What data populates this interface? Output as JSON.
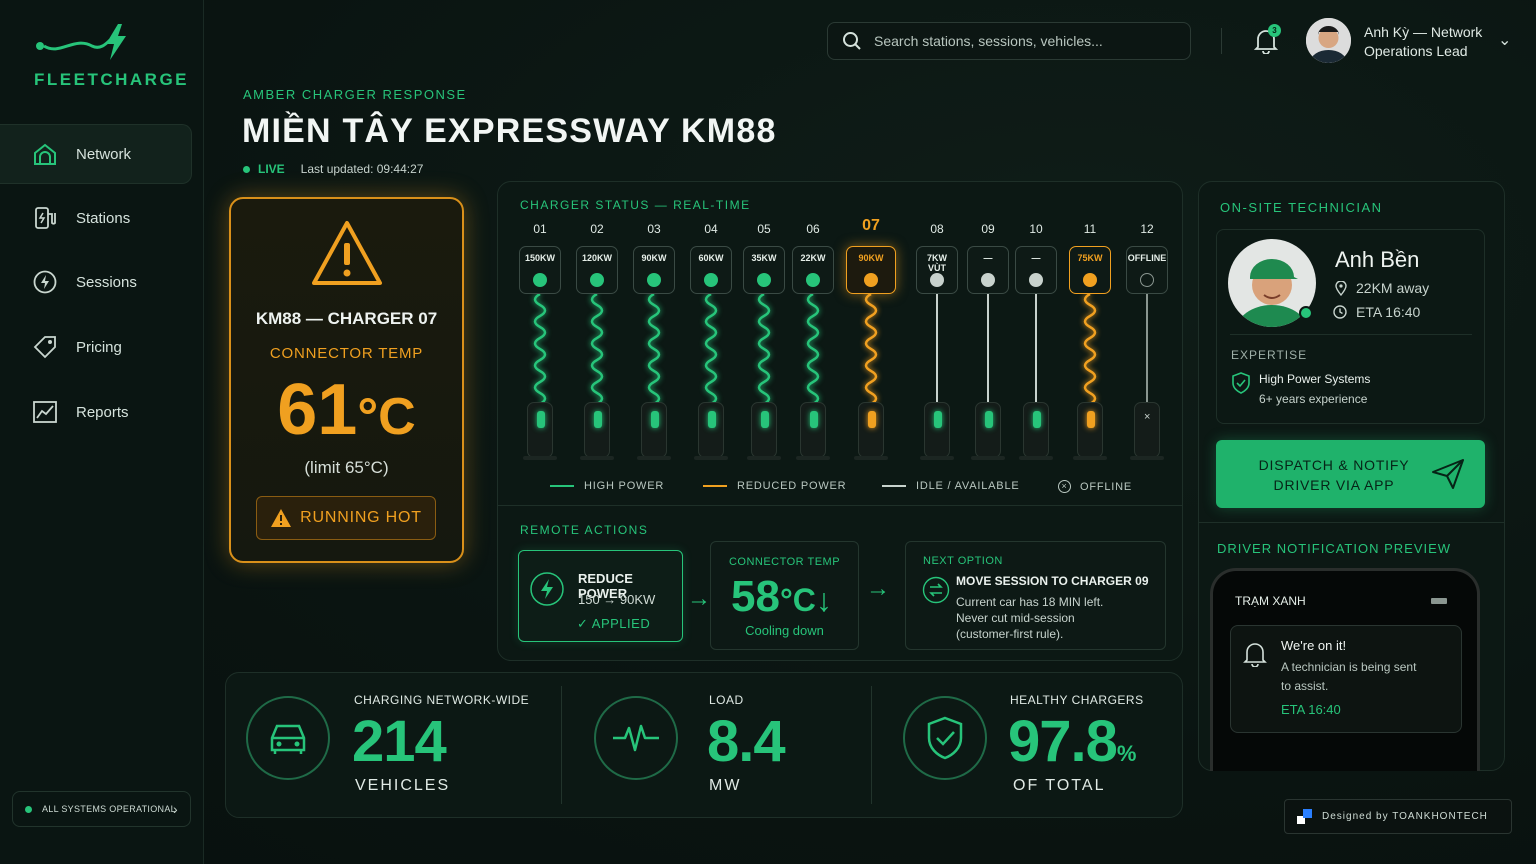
{
  "app": {
    "name": "FLEETCHARGE"
  },
  "search": {
    "placeholder": "Search stations, sessions, vehicles..."
  },
  "notifications": {
    "count": "3"
  },
  "user": {
    "name": "Anh Kỳ — Network",
    "role": "Operations Lead"
  },
  "sidebar": {
    "items": [
      {
        "label": "Network",
        "icon": "home-icon",
        "active": true
      },
      {
        "label": "Stations",
        "icon": "station-icon"
      },
      {
        "label": "Sessions",
        "icon": "bolt-icon"
      },
      {
        "label": "Pricing",
        "icon": "tag-icon"
      },
      {
        "label": "Reports",
        "icon": "chart-icon"
      }
    ],
    "status": "ALL SYSTEMS OPERATIONAL"
  },
  "header": {
    "eyebrow": "AMBER CHARGER RESPONSE",
    "title": "MIỀN TÂY EXPRESSWAY KM88",
    "live": "LIVE",
    "updated": "Last updated: 09:44:27"
  },
  "alert": {
    "charger": "KM88 — CHARGER 07",
    "metric": "CONNECTOR TEMP",
    "value": "61",
    "unit": "°C",
    "limit": "(limit 65°C)",
    "badge": "RUNNING HOT"
  },
  "chargers": {
    "title": "CHARGER STATUS — REAL-TIME",
    "items": [
      {
        "num": "01",
        "power": "150KW",
        "state": "high"
      },
      {
        "num": "02",
        "power": "120KW",
        "state": "high"
      },
      {
        "num": "03",
        "power": "90KW",
        "state": "high"
      },
      {
        "num": "04",
        "power": "60KW",
        "state": "high"
      },
      {
        "num": "05",
        "power": "35KW",
        "state": "high"
      },
      {
        "num": "06",
        "power": "22KW",
        "state": "high"
      },
      {
        "num": "07",
        "power": "90KW",
        "state": "reduced-selected"
      },
      {
        "num": "08",
        "power": "7KW VÙT",
        "state": "idle"
      },
      {
        "num": "09",
        "power": "—",
        "state": "idle"
      },
      {
        "num": "10",
        "power": "—",
        "state": "idle"
      },
      {
        "num": "11",
        "power": "75KW",
        "state": "reduced"
      },
      {
        "num": "12",
        "power": "OFFLINE",
        "state": "offline"
      }
    ],
    "legend": [
      "HIGH POWER",
      "REDUCED POWER",
      "IDLE / AVAILABLE",
      "OFFLINE"
    ],
    "colors": {
      "high": "#27c47a",
      "reduced": "#f0a020",
      "idle": "#c8d2cd",
      "offline": "#8a9690"
    }
  },
  "remote": {
    "title": "REMOTE ACTIONS",
    "action_title": "REDUCE POWER",
    "action_detail": "150 → 90KW",
    "action_status": "✓ APPLIED",
    "temp_label": "CONNECTOR TEMP",
    "temp_value": "58",
    "temp_unit": "°C",
    "temp_status": "Cooling down",
    "next_label": "NEXT OPTION",
    "next_title": "MOVE SESSION TO CHARGER 09",
    "next_desc1": "Current car has 18 MIN left.",
    "next_desc2": "Never cut mid-session",
    "next_desc3": "(customer-first rule)."
  },
  "stats": [
    {
      "label": "CHARGING NETWORK-WIDE",
      "value": "214",
      "unit": "VEHICLES",
      "suffix": ""
    },
    {
      "label": "LOAD",
      "value": "8.4",
      "unit": "MW",
      "suffix": ""
    },
    {
      "label": "HEALTHY CHARGERS",
      "value": "97.8",
      "unit": "OF TOTAL",
      "suffix": "%"
    }
  ],
  "technician": {
    "title": "ON-SITE TECHNICIAN",
    "name": "Anh Bền",
    "distance": "22KM away",
    "eta": "ETA 16:40",
    "expertise_label": "EXPERTISE",
    "expertise": "High Power Systems",
    "experience": "6+ years experience",
    "dispatch_line1": "DISPATCH & NOTIFY",
    "dispatch_line2": "DRIVER VIA APP"
  },
  "preview": {
    "title": "DRIVER NOTIFICATION PREVIEW",
    "app": "TRẠM XANH",
    "heading": "We're on it!",
    "body1": "A technician is being sent",
    "body2": "to assist.",
    "eta": "ETA 16:40"
  },
  "footer": {
    "credit": "Designed by TOANKHONTECH"
  }
}
